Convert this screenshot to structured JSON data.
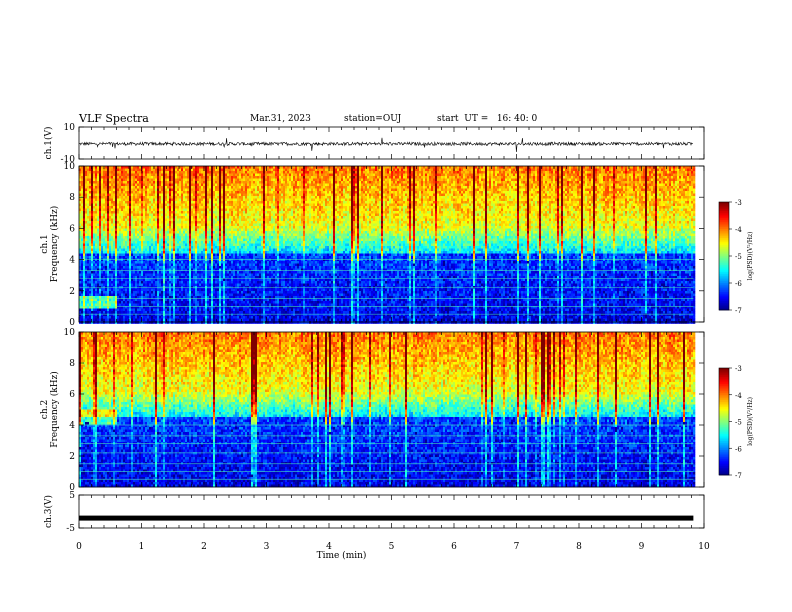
{
  "header": {
    "title": "VLF Spectra",
    "date": "Mar.31, 2023",
    "station": "station=OUJ",
    "start": "start  UT =   16: 40: 0"
  },
  "chart_data": [
    {
      "type": "line",
      "panel": "ch1-waveform",
      "ylabel": "ch.1(V)",
      "ylim": [
        -10,
        10
      ],
      "yticks": [
        -10,
        10
      ],
      "xlim": [
        0,
        10
      ],
      "series": [
        {
          "color": "#000000",
          "approx_level": -0.5,
          "approx_noise_amplitude": 2
        }
      ]
    },
    {
      "type": "heatmap",
      "panel": "ch1-spectrogram",
      "ylabel": "ch.1\nFrequency (kHz)",
      "ylabel_line1": "ch.1",
      "ylabel_line2": "Frequency (kHz)",
      "ylim": [
        0,
        10
      ],
      "yticks": [
        0,
        2,
        4,
        6,
        8,
        10
      ],
      "xlim": [
        0,
        9.83
      ],
      "colorbar": {
        "label": "log(PSD)(V²/Hz)",
        "range": [
          -7,
          -3
        ],
        "ticks": [
          -3,
          -4,
          -5,
          -6,
          -7
        ]
      }
    },
    {
      "type": "heatmap",
      "panel": "ch2-spectrogram",
      "ylabel": "ch.2\nFrequency (kHz)",
      "ylabel_line1": "ch.2",
      "ylabel_line2": "Frequency (kHz)",
      "ylim": [
        0,
        10
      ],
      "yticks": [
        0,
        2,
        4,
        6,
        8,
        10
      ],
      "xlim": [
        0,
        9.83
      ],
      "colorbar": {
        "label": "log(PSD)(V²/Hz)",
        "range": [
          -7,
          -3
        ],
        "ticks": [
          -3,
          -4,
          -5,
          -6,
          -7
        ]
      }
    },
    {
      "type": "line",
      "panel": "ch3-waveform",
      "ylabel": "ch.3(V)",
      "ylim": [
        -5,
        5
      ],
      "yticks": [
        -5,
        5
      ],
      "xlim": [
        0,
        10
      ],
      "series": [
        {
          "color": "#000000",
          "approx_level": -2
        }
      ]
    }
  ],
  "xaxis": {
    "label": "Time (min)",
    "range": [
      0,
      10
    ],
    "ticks": [
      "0",
      "1",
      "2",
      "3",
      "4",
      "5",
      "6",
      "7",
      "8",
      "9",
      "10"
    ]
  }
}
